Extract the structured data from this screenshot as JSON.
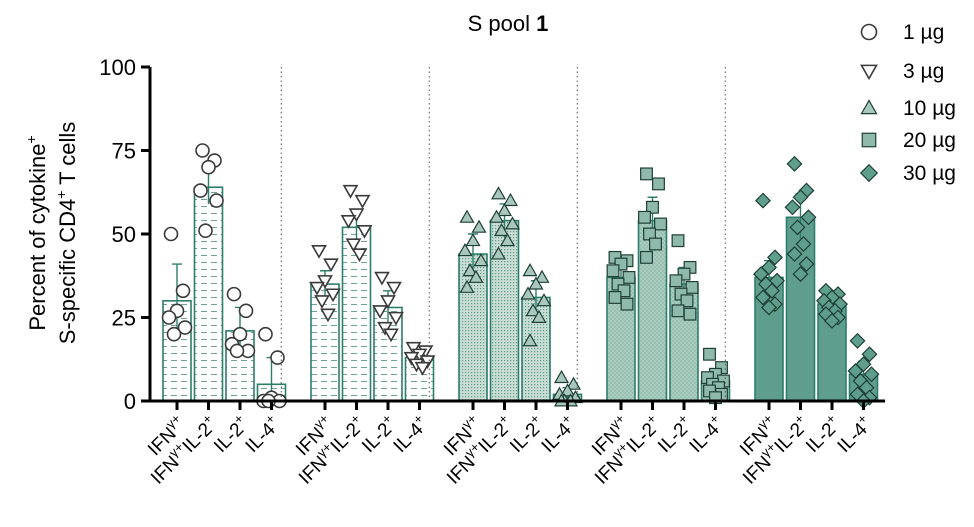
{
  "chart_data": {
    "type": "bar",
    "title_main": "S pool ",
    "title_num": "1",
    "ylabel_line1_main": "Percent of cytokine",
    "ylabel_line1_sup": "+",
    "ylabel_line2_a": "S-specific CD4",
    "ylabel_line2_sup": "+",
    "ylabel_line2_b": " T cells",
    "ylim": [
      0,
      100
    ],
    "yticks": [
      "0",
      "25",
      "50",
      "75",
      "100"
    ],
    "ytick_values": [
      0,
      25,
      50,
      75,
      100
    ],
    "grid": false,
    "legend_position": "top-right",
    "categories": [
      {
        "main": "IFN",
        "sup": "γ+"
      },
      {
        "main": "IFN",
        "sup": "γ+",
        "main2": "IL-2",
        "sup2": "+"
      },
      {
        "main": "IL-2",
        "sup": "+"
      },
      {
        "main": "IL-4",
        "sup": "+"
      }
    ],
    "bar_color": "#2e7d6b",
    "series": [
      {
        "name": "1 µg",
        "marker": "circle",
        "fill": "#ffffff",
        "bar_pattern": "hatch",
        "values": [
          30,
          64,
          21,
          5
        ],
        "errors": [
          11,
          5,
          7,
          8
        ],
        "points": [
          [
            50,
            33,
            27,
            25,
            22,
            20
          ],
          [
            75,
            72,
            70,
            63,
            60,
            51
          ],
          [
            32,
            27,
            20,
            17,
            15,
            15
          ],
          [
            20,
            13,
            1,
            0,
            0,
            0
          ]
        ]
      },
      {
        "name": "3 µg",
        "marker": "triangle-down",
        "fill": "#ffffff",
        "bar_pattern": "hatch",
        "values": [
          35,
          52,
          28,
          13
        ],
        "errors": [
          4,
          5,
          5,
          1.5
        ],
        "points": [
          [
            45,
            41,
            36,
            34,
            32,
            30,
            26
          ],
          [
            63,
            60,
            56,
            54,
            51,
            47,
            44
          ],
          [
            37,
            34,
            30,
            27,
            25,
            22,
            20
          ],
          [
            16,
            15,
            14,
            13,
            12,
            11,
            10
          ]
        ]
      },
      {
        "name": "10 µg",
        "marker": "triangle-up",
        "fill": "#a9c7bd",
        "bar_pattern": "dots",
        "values": [
          44,
          54,
          31,
          2
        ],
        "errors": [
          6,
          5,
          5,
          2
        ],
        "points": [
          [
            55,
            52,
            48,
            45,
            42,
            39,
            37,
            34
          ],
          [
            62,
            60,
            57,
            55,
            53,
            51,
            48,
            44
          ],
          [
            39,
            37,
            35,
            32,
            30,
            27,
            25,
            18
          ],
          [
            7,
            5,
            3,
            2,
            1,
            0,
            0,
            0
          ]
        ]
      },
      {
        "name": "20 µg",
        "marker": "square",
        "fill": "#8fb9ab",
        "bar_pattern": "fine",
        "values": [
          37,
          54,
          35,
          6
        ],
        "errors": [
          4,
          7,
          5,
          3
        ],
        "points": [
          [
            43,
            42,
            41,
            39,
            37,
            35,
            33,
            31,
            29
          ],
          [
            68,
            65,
            58,
            55,
            53,
            50,
            47,
            43
          ],
          [
            48,
            40,
            38,
            36,
            34,
            32,
            30,
            27,
            26
          ],
          [
            14,
            10,
            8,
            7,
            6,
            5,
            4,
            3,
            2,
            1
          ]
        ]
      },
      {
        "name": "30 µg",
        "marker": "diamond",
        "fill": "#5f9e8c",
        "bar_pattern": "solid",
        "values": [
          37,
          55,
          29,
          8
        ],
        "errors": [
          5,
          7,
          3,
          4
        ],
        "points": [
          [
            60,
            43,
            40,
            38,
            36,
            35,
            33,
            31,
            29,
            28
          ],
          [
            71,
            63,
            61,
            58,
            55,
            52,
            47,
            44,
            41,
            38
          ],
          [
            33,
            32,
            31,
            30,
            29,
            28,
            27,
            26,
            25,
            24
          ],
          [
            18,
            14,
            11,
            9,
            8,
            6,
            4,
            2,
            1,
            0
          ]
        ]
      }
    ]
  }
}
